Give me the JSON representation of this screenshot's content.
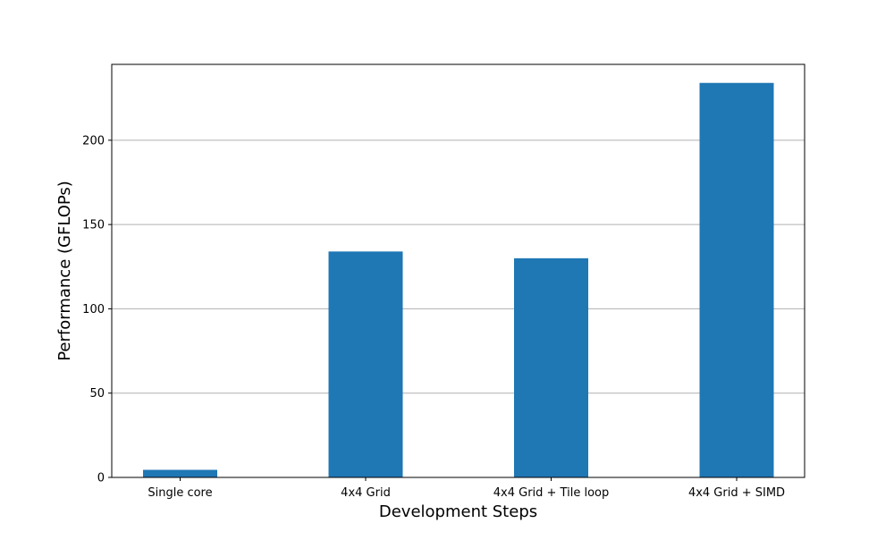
{
  "chart_data": {
    "type": "bar",
    "title": "",
    "xlabel": "Development Steps",
    "ylabel": "Performance (GFLOPs)",
    "categories": [
      "Single core",
      "4x4 Grid",
      "4x4 Grid + Tile loop",
      "4x4 Grid + SIMD"
    ],
    "values": [
      4.5,
      134,
      130,
      234
    ],
    "ylim": [
      0,
      245
    ],
    "yticks": [
      0,
      50,
      100,
      150,
      200
    ],
    "grid": "y",
    "bar_color": "#1f77b4",
    "legend": "none"
  }
}
